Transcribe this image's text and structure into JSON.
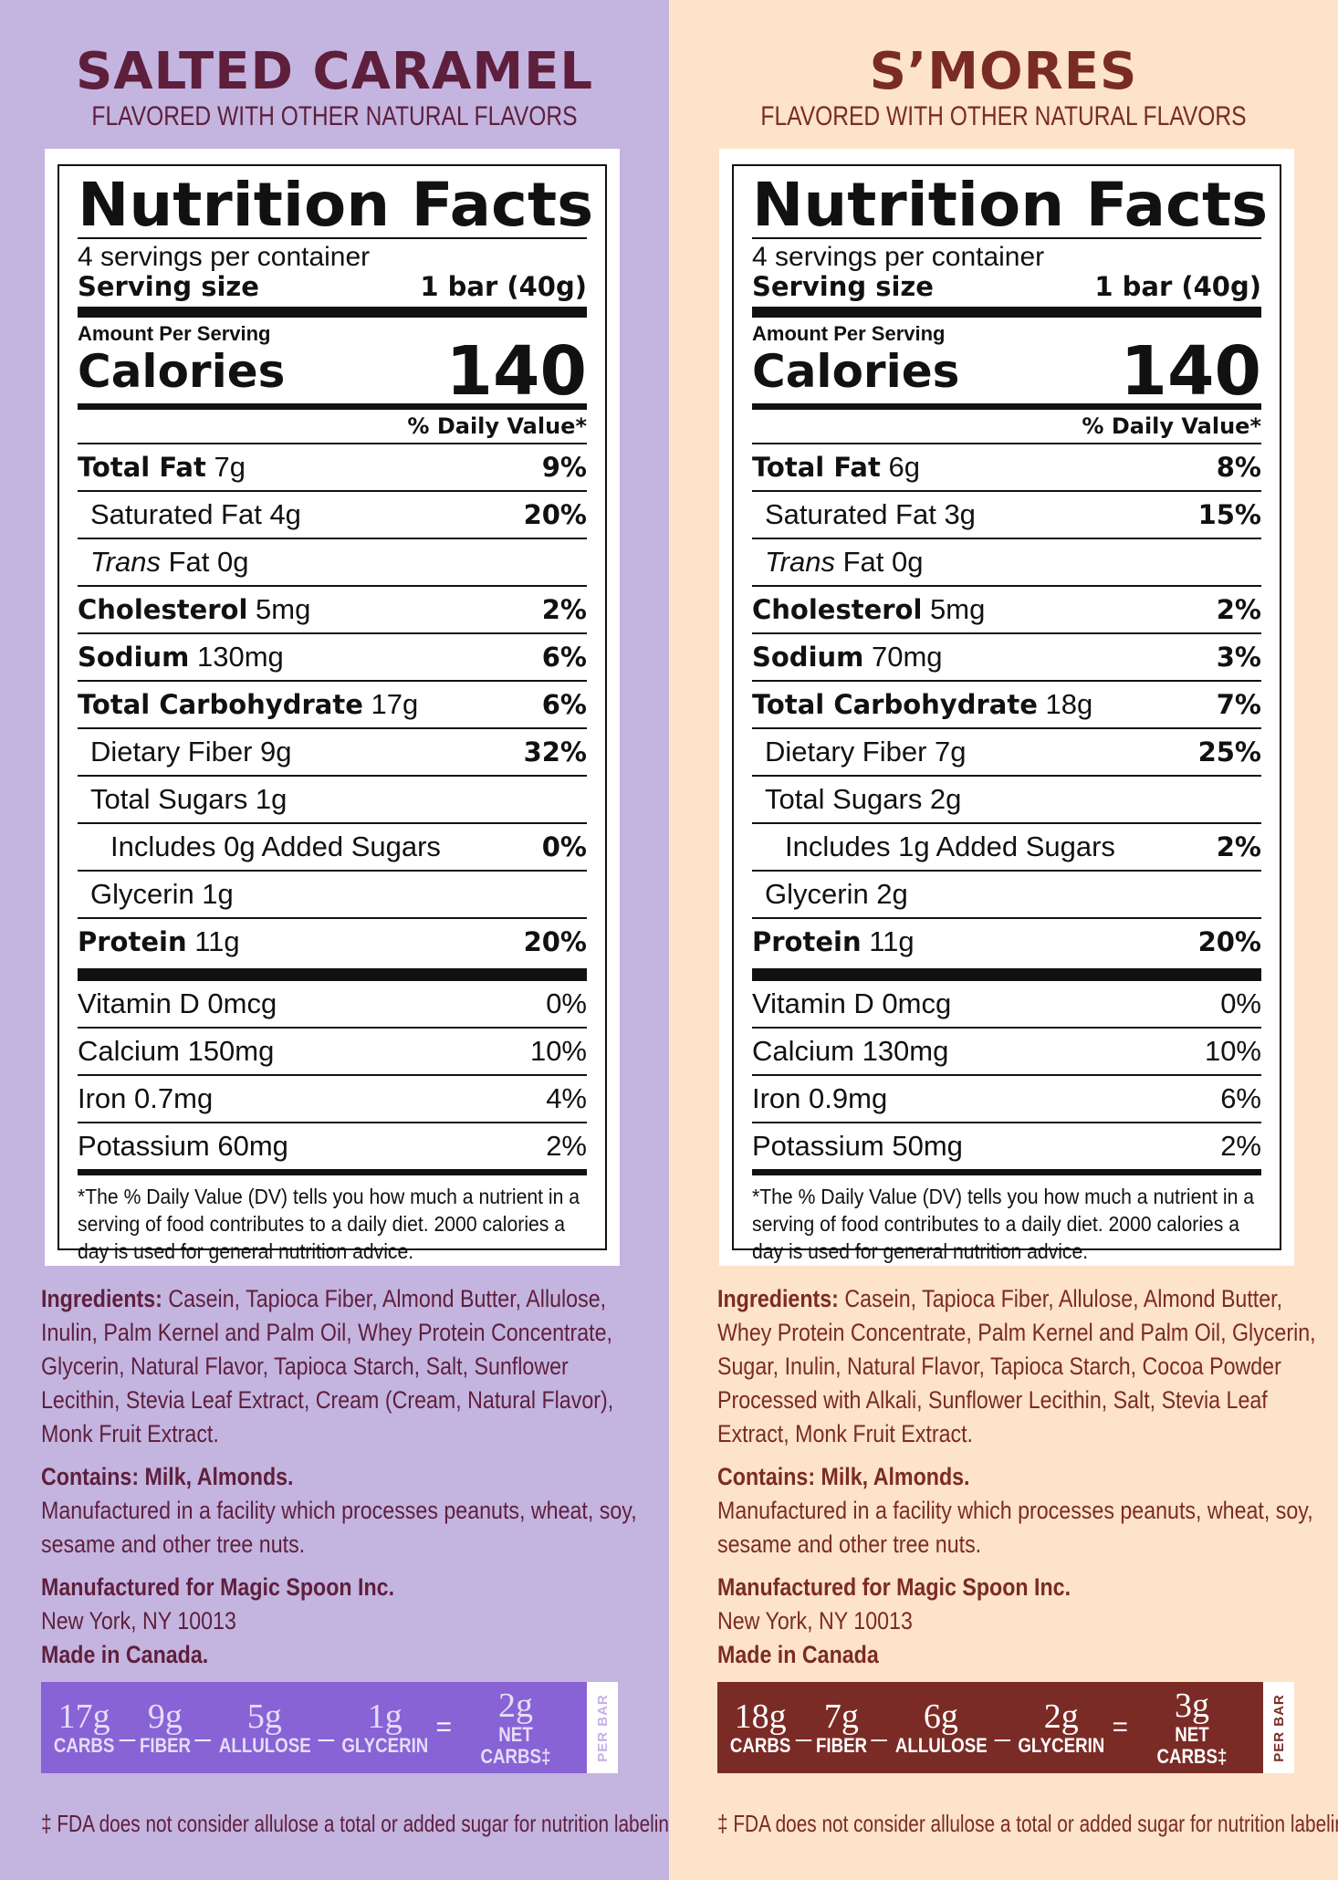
{
  "left": {
    "flavor": "SALTED CARAMEL",
    "subtitle": "FLAVORED WITH OTHER NATURAL FLAVORS",
    "nf_title": "Nutrition Facts",
    "servings": "4 servings per container",
    "serving_size_label": "Serving size",
    "serving_size_value": "1 bar (40g)",
    "amount_per_serving": "Amount Per Serving",
    "calories_label": "Calories",
    "calories_value": "140",
    "dv_head": "% Daily Value*",
    "rows": [
      {
        "bold": "Total Fat",
        "amt": " 7g",
        "pct": "9%"
      },
      {
        "plain": "Saturated Fat 4g",
        "pct": "20%"
      },
      {
        "italic": "Trans",
        "plain": " Fat 0g",
        "pct": ""
      },
      {
        "bold": "Cholesterol",
        "amt": " 5mg",
        "pct": "2%"
      },
      {
        "bold": "Sodium",
        "amt": " 130mg",
        "pct": "6%"
      },
      {
        "bold": "Total Carbohydrate",
        "amt": " 17g",
        "pct": "6%"
      },
      {
        "plain": "Dietary Fiber 9g",
        "pct": "32%"
      },
      {
        "plain": "Total Sugars 1g",
        "pct": ""
      },
      {
        "plain": "Includes 0g Added Sugars",
        "pct": "0%"
      },
      {
        "plain": "Glycerin 1g",
        "pct": ""
      },
      {
        "bold": "Protein",
        "amt": " 11g",
        "pct": "20%"
      }
    ],
    "vitamins": [
      {
        "name": "Vitamin D 0mcg",
        "pct": "0%"
      },
      {
        "name": "Calcium 150mg",
        "pct": "10%"
      },
      {
        "name": "Iron 0.7mg",
        "pct": "4%"
      },
      {
        "name": "Potassium 60mg",
        "pct": "2%"
      }
    ],
    "footnote": "*The % Daily Value (DV) tells you how much a nutrient in a serving of food contributes to a daily diet. 2000 calories a day is used for general nutrition advice.",
    "ingredients_label": "Ingredients:",
    "ingredients": " Casein, Tapioca Fiber, Almond Butter, Allulose, Inulin, Palm Kernel and Palm Oil, Whey Protein Concentrate, Glycerin, Natural Flavor, Tapioca Starch, Salt, Sunflower Lecithin, Stevia Leaf Extract, Cream (Cream, Natural Flavor), Monk Fruit Extract.",
    "contains": "Contains: Milk, Almonds.",
    "facility": "Manufactured in a facility which processes peanuts, wheat, soy, sesame and other tree nuts.",
    "manufactured_for": "Manufactured for Magic Spoon Inc.",
    "address": "New York, NY 10013",
    "made_in": "Made in Canada.",
    "netbar": [
      {
        "num": "17g",
        "lbl": "CARBS"
      },
      {
        "num": "9g",
        "lbl": "FIBER"
      },
      {
        "num": "5g",
        "lbl": "ALLULOSE"
      },
      {
        "num": "1g",
        "lbl": "GLYCERIN"
      },
      {
        "num": "2g",
        "lbl": "NET CARBS‡"
      }
    ],
    "ops": [
      "_",
      "_",
      "_",
      "="
    ],
    "per_bar": "PER BAR",
    "fda": "‡ FDA does not consider allulose a total or added sugar for nutrition labeling."
  },
  "right": {
    "flavor": "S’MORES",
    "subtitle": "FLAVORED WITH OTHER NATURAL FLAVORS",
    "nf_title": "Nutrition Facts",
    "servings": "4 servings per container",
    "serving_size_label": "Serving size",
    "serving_size_value": "1 bar (40g)",
    "amount_per_serving": "Amount Per Serving",
    "calories_label": "Calories",
    "calories_value": "140",
    "dv_head": "% Daily Value*",
    "rows": [
      {
        "bold": "Total Fat",
        "amt": " 6g",
        "pct": "8%"
      },
      {
        "plain": "Saturated Fat 3g",
        "pct": "15%"
      },
      {
        "italic": "Trans",
        "plain": " Fat 0g",
        "pct": ""
      },
      {
        "bold": "Cholesterol",
        "amt": " 5mg",
        "pct": "2%"
      },
      {
        "bold": "Sodium",
        "amt": " 70mg",
        "pct": "3%"
      },
      {
        "bold": "Total Carbohydrate",
        "amt": " 18g",
        "pct": "7%"
      },
      {
        "plain": "Dietary Fiber 7g",
        "pct": "25%"
      },
      {
        "plain": "Total Sugars 2g",
        "pct": ""
      },
      {
        "plain": "Includes 1g Added Sugars",
        "pct": "2%"
      },
      {
        "plain": "Glycerin 2g",
        "pct": ""
      },
      {
        "bold": "Protein",
        "amt": " 11g",
        "pct": "20%"
      }
    ],
    "vitamins": [
      {
        "name": "Vitamin D 0mcg",
        "pct": "0%"
      },
      {
        "name": "Calcium 130mg",
        "pct": "10%"
      },
      {
        "name": "Iron 0.9mg",
        "pct": "6%"
      },
      {
        "name": "Potassium 50mg",
        "pct": "2%"
      }
    ],
    "footnote": "*The % Daily Value (DV) tells you how much a nutrient in a serving of food contributes to a daily diet. 2000 calories a day is used for general nutrition advice.",
    "ingredients_label": "Ingredients:",
    "ingredients": " Casein, Tapioca Fiber, Allulose, Almond Butter, Whey Protein Concentrate, Palm Kernel and Palm Oil, Glycerin, Sugar, Inulin, Natural Flavor, Tapioca Starch, Cocoa Powder Processed with Alkali, Sunflower Lecithin, Salt, Stevia Leaf Extract, Monk Fruit Extract.",
    "contains": "Contains: Milk, Almonds.",
    "facility": "Manufactured in a facility which processes peanuts, wheat, soy, sesame and other tree nuts.",
    "manufactured_for": "Manufactured for Magic Spoon Inc.",
    "address": "New York, NY 10013",
    "made_in": "Made in Canada",
    "netbar": [
      {
        "num": "18g",
        "lbl": "CARBS"
      },
      {
        "num": "7g",
        "lbl": "FIBER"
      },
      {
        "num": "6g",
        "lbl": "ALLULOSE"
      },
      {
        "num": "2g",
        "lbl": "GLYCERIN"
      },
      {
        "num": "3g",
        "lbl": "NET CARBS‡"
      }
    ],
    "ops": [
      "_",
      "_",
      "_",
      "="
    ],
    "per_bar": "PER BAR",
    "fda": "‡ FDA does not consider allulose a total or added sugar for nutrition labeling."
  },
  "colors": {
    "left_bg": "#c4b4e0",
    "right_bg": "#fde3c8",
    "left_accent": "#5e1f3c",
    "right_accent": "#7a2b26",
    "left_bar": "#8763d6",
    "right_bar": "#7b2b26"
  }
}
